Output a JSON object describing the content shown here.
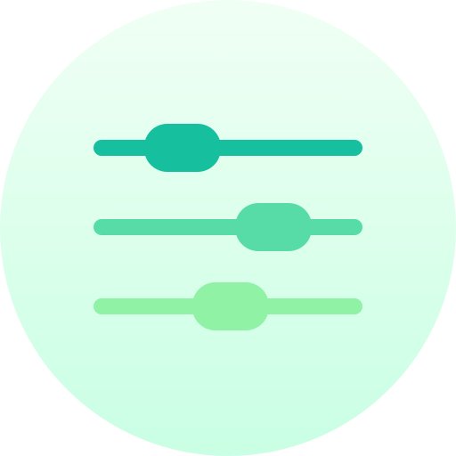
{
  "icon": {
    "name": "equalizer-sliders-icon",
    "background": {
      "shape": "circle",
      "gradient_top": "#f0fff4",
      "gradient_bottom": "#c9ffe4"
    },
    "sliders": [
      {
        "name": "slider-1",
        "level": 0.32,
        "color": "#16bf9e"
      },
      {
        "name": "slider-2",
        "level": 0.68,
        "color": "#58dca7"
      },
      {
        "name": "slider-3",
        "level": 0.51,
        "color": "#8ff2a4"
      }
    ]
  }
}
